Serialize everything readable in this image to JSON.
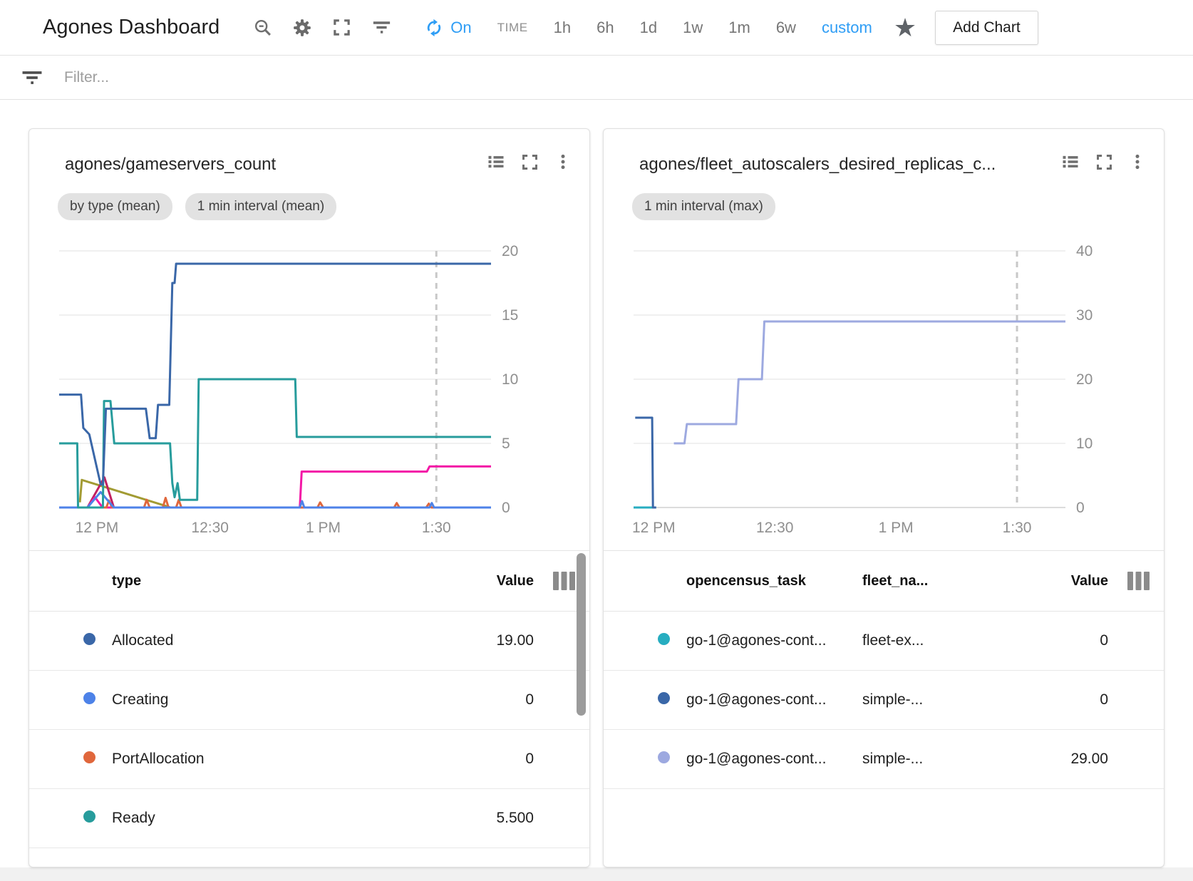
{
  "header": {
    "title": "Agones Dashboard",
    "refresh_label": "On",
    "time_label": "TIME",
    "time_ranges": [
      "1h",
      "6h",
      "1d",
      "1w",
      "1m",
      "6w"
    ],
    "custom_label": "custom",
    "add_chart_label": "Add Chart",
    "accent_color": "#2e9df5"
  },
  "filter": {
    "placeholder": "Filter..."
  },
  "cards": [
    {
      "title": "agones/gameservers_count",
      "chips": [
        "by type (mean)",
        "1 min interval (mean)"
      ],
      "table": {
        "label_columns": [
          "type"
        ],
        "value_column": "Value",
        "scrollbar": true,
        "rows": [
          {
            "dot_color": "#3a67a8",
            "labels": [
              "Allocated"
            ],
            "value": "19.00"
          },
          {
            "dot_color": "#4d82e8",
            "labels": [
              "Creating"
            ],
            "value": "0"
          },
          {
            "dot_color": "#e0673c",
            "labels": [
              "PortAllocation"
            ],
            "value": "0"
          },
          {
            "dot_color": "#279c9c",
            "labels": [
              "Ready"
            ],
            "value": "5.500"
          }
        ]
      }
    },
    {
      "title": "agones/fleet_autoscalers_desired_replicas_c...",
      "chips": [
        "1 min interval (max)"
      ],
      "table": {
        "label_columns": [
          "opencensus_task",
          "fleet_na..."
        ],
        "value_column": "Value",
        "scrollbar": false,
        "rows": [
          {
            "dot_color": "#27adc0",
            "labels": [
              "go-1@agones-cont...",
              "fleet-ex..."
            ],
            "value": "0"
          },
          {
            "dot_color": "#3a67a8",
            "labels": [
              "go-1@agones-cont...",
              "simple-..."
            ],
            "value": "0"
          },
          {
            "dot_color": "#9da9e0",
            "labels": [
              "go-1@agones-cont...",
              "simple-..."
            ],
            "value": "29.00"
          }
        ]
      }
    }
  ],
  "chart_data": [
    {
      "type": "line",
      "title": "agones/gameservers_count",
      "aggregations": [
        "by type (mean)",
        "1 min interval (mean)"
      ],
      "x_unit": "minutes after 11:00 AM",
      "x_range": [
        50,
        164.5
      ],
      "x_ticks": [
        {
          "t": 60,
          "label": "12 PM"
        },
        {
          "t": 90,
          "label": "12:30"
        },
        {
          "t": 120,
          "label": "1 PM"
        },
        {
          "t": 150,
          "label": "1:30"
        }
      ],
      "ylim": [
        0,
        20
      ],
      "y_ticks": [
        0,
        5,
        10,
        15,
        20
      ],
      "now_marker_t": 150,
      "grid": true,
      "legend_position": "table-below",
      "series": [
        {
          "name": "unlabeled-olive",
          "color": "#a29b33",
          "points": [
            [
              55.5,
              0.4
            ],
            [
              56,
              2.15
            ],
            [
              78.5,
              0.1
            ],
            [
              79.5,
              0
            ]
          ]
        },
        {
          "name": "unlabeled-crimson",
          "color": "#c02060",
          "points": [
            [
              57.5,
              0
            ],
            [
              62,
              2.35
            ],
            [
              64.5,
              0
            ]
          ]
        },
        {
          "name": "unlabeled-magenta",
          "color": "#f318a6",
          "points": [
            [
              57.5,
              0
            ],
            [
              59.5,
              0.8
            ],
            [
              61.5,
              0
            ],
            [
              113.8,
              0
            ],
            [
              114.3,
              2.8
            ],
            [
              147.5,
              2.8
            ],
            [
              148.2,
              3.2
            ],
            [
              164.5,
              3.2
            ]
          ]
        },
        {
          "name": "PortAllocation",
          "color": "#e0673c",
          "points": [
            [
              50,
              0
            ],
            [
              62.5,
              0
            ],
            [
              63.2,
              0.55
            ],
            [
              64,
              0
            ],
            [
              72.5,
              0
            ],
            [
              73.2,
              0.6
            ],
            [
              74,
              0
            ],
            [
              77.5,
              0
            ],
            [
              78.2,
              0.75
            ],
            [
              79,
              0
            ],
            [
              81,
              0
            ],
            [
              81.7,
              0.6
            ],
            [
              82.4,
              0
            ],
            [
              118.5,
              0
            ],
            [
              119.2,
              0.4
            ],
            [
              120,
              0
            ],
            [
              138.8,
              0
            ],
            [
              139.5,
              0.35
            ],
            [
              140.2,
              0
            ],
            [
              147.3,
              0
            ],
            [
              148,
              0.3
            ],
            [
              148.7,
              0
            ],
            [
              164.5,
              0
            ]
          ]
        },
        {
          "name": "Creating",
          "color": "#4d82e8",
          "points": [
            [
              50,
              0
            ],
            [
              57.5,
              0
            ],
            [
              61,
              1.2
            ],
            [
              64.5,
              0
            ],
            [
              113.8,
              0
            ],
            [
              114.4,
              0.5
            ],
            [
              115,
              0
            ],
            [
              148.2,
              0
            ],
            [
              148.8,
              0.35
            ],
            [
              149.4,
              0
            ],
            [
              164.5,
              0
            ]
          ]
        },
        {
          "name": "Ready",
          "color": "#279c9c",
          "points": [
            [
              50,
              5
            ],
            [
              54.8,
              5
            ],
            [
              55,
              0
            ],
            [
              61.6,
              0
            ],
            [
              61.9,
              8.3
            ],
            [
              63.6,
              8.3
            ],
            [
              64.6,
              5
            ],
            [
              79.4,
              5
            ],
            [
              80,
              1.9
            ],
            [
              80.6,
              0.8
            ],
            [
              81.4,
              1.9
            ],
            [
              82,
              0.6
            ],
            [
              86.6,
              0.6
            ],
            [
              87,
              10
            ],
            [
              112.6,
              10
            ],
            [
              113,
              5.5
            ],
            [
              164.5,
              5.5
            ]
          ]
        },
        {
          "name": "Allocated",
          "color": "#3a67a8",
          "points": [
            [
              50,
              8.8
            ],
            [
              55.8,
              8.8
            ],
            [
              56.4,
              6.2
            ],
            [
              58,
              5.7
            ],
            [
              61,
              1.8
            ],
            [
              61.6,
              1.8
            ],
            [
              62.4,
              7.7
            ],
            [
              73,
              7.7
            ],
            [
              74,
              5.4
            ],
            [
              75.6,
              5.4
            ],
            [
              76.2,
              8
            ],
            [
              79.2,
              8
            ],
            [
              80,
              17.5
            ],
            [
              80.6,
              17.5
            ],
            [
              81,
              19
            ],
            [
              164.5,
              19
            ]
          ]
        }
      ]
    },
    {
      "type": "line",
      "title": "agones/fleet_autoscalers_desired_replicas_c...",
      "aggregations": [
        "1 min interval (max)"
      ],
      "x_unit": "minutes after 11:00 AM",
      "x_range": [
        55,
        162
      ],
      "x_ticks": [
        {
          "t": 60,
          "label": "12 PM"
        },
        {
          "t": 90,
          "label": "12:30"
        },
        {
          "t": 120,
          "label": "1 PM"
        },
        {
          "t": 150,
          "label": "1:30"
        }
      ],
      "ylim": [
        0,
        40
      ],
      "y_ticks": [
        0,
        10,
        20,
        30,
        40
      ],
      "now_marker_t": 150,
      "grid": true,
      "legend_position": "table-below",
      "series": [
        {
          "name": "go-1@agones-cont... / fleet-ex...",
          "color": "#27adc0",
          "points": [
            [
              55,
              0
            ],
            [
              60.6,
              0
            ]
          ]
        },
        {
          "name": "go-1@agones-cont... / simple-... (drops)",
          "color": "#3a67a8",
          "points": [
            [
              55.4,
              14
            ],
            [
              59.6,
              14
            ],
            [
              59.8,
              0
            ],
            [
              60.6,
              0
            ]
          ]
        },
        {
          "name": "go-1@agones-cont... / simple-... (29.00)",
          "color": "#9da9e0",
          "points": [
            [
              65,
              10
            ],
            [
              67.6,
              10
            ],
            [
              68.2,
              13
            ],
            [
              80.4,
              13
            ],
            [
              81,
              20
            ],
            [
              86.8,
              20
            ],
            [
              87.4,
              29
            ],
            [
              162,
              29
            ]
          ]
        }
      ]
    }
  ]
}
